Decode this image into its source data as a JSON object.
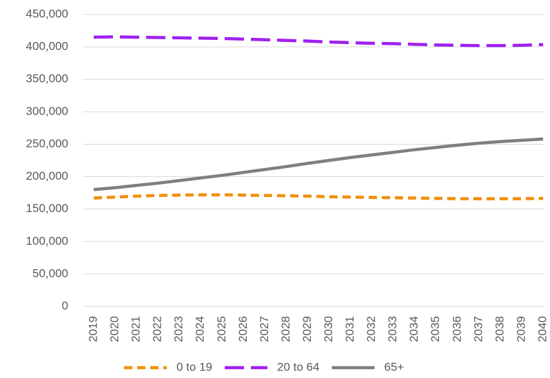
{
  "chart_data": {
    "type": "line",
    "categories": [
      "2019",
      "2020",
      "2021",
      "2022",
      "2023",
      "2024",
      "2025",
      "2026",
      "2027",
      "2028",
      "2029",
      "2030",
      "2031",
      "2032",
      "2033",
      "2034",
      "2035",
      "2036",
      "2037",
      "2038",
      "2039",
      "2040"
    ],
    "series": [
      {
        "name": "0 to 19",
        "color": "#f0900a",
        "dash": "short",
        "values": [
          167000,
          168500,
          170000,
          171000,
          171500,
          172000,
          172000,
          171500,
          171000,
          170500,
          170000,
          169000,
          168500,
          168000,
          167500,
          167000,
          166500,
          166000,
          166000,
          166000,
          166000,
          166500
        ]
      },
      {
        "name": "20 to 64",
        "color": "#a020f0",
        "dash": "long",
        "values": [
          415000,
          415500,
          415000,
          414500,
          414000,
          413500,
          413000,
          412000,
          411000,
          410000,
          409000,
          407500,
          406500,
          405500,
          405000,
          404000,
          403000,
          402500,
          402000,
          402000,
          402500,
          403500
        ]
      },
      {
        "name": "65+",
        "color": "#7f7f7f",
        "dash": "solid",
        "values": [
          180000,
          183000,
          186500,
          190000,
          194000,
          198000,
          202000,
          206500,
          211000,
          215500,
          220500,
          225000,
          229500,
          233500,
          237500,
          241500,
          245000,
          248500,
          251500,
          254000,
          256000,
          258000
        ]
      }
    ],
    "ylim": [
      0,
      450000
    ],
    "yticks": [
      0,
      {
        "value": 50000,
        "label": "50,000"
      },
      {
        "value": 100000,
        "label": "100,000"
      },
      {
        "value": 150000,
        "label": "150,000"
      },
      {
        "value": 200000,
        "label": "200,000"
      },
      {
        "value": 250000,
        "label": "250,000"
      },
      {
        "value": 300000,
        "label": "300,000"
      },
      {
        "value": 350000,
        "label": "350,000"
      },
      {
        "value": 400000,
        "label": "400,000"
      },
      {
        "value": 450000,
        "label": "450,000"
      }
    ],
    "grid": true,
    "legend": "bottom"
  }
}
